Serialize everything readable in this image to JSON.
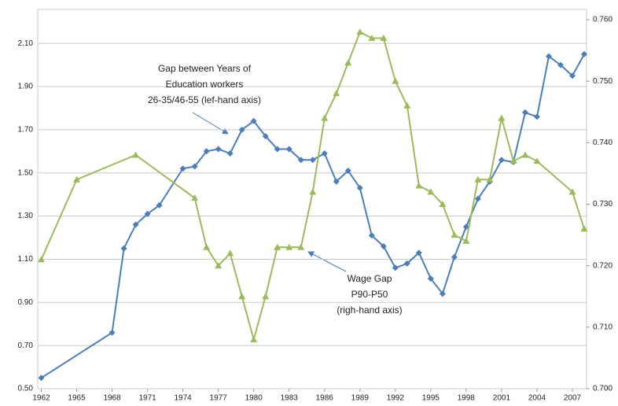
{
  "chart_data": {
    "type": "line",
    "annotations": [
      [
        "Gap between Years of",
        "Education workers",
        "26-35/46-55 (lef-hand axis)"
      ],
      [
        "Wage Gap",
        "P90-P50",
        "(righ-hand axis)"
      ]
    ],
    "series": [
      {
        "color": "#4a7ebb",
        "marker": "diamond",
        "x": [
          1962,
          1968,
          1969,
          1970,
          1971,
          1972,
          1974,
          1975,
          1976,
          1977,
          1978,
          1979,
          1980,
          1981,
          1982,
          1983,
          1984,
          1985,
          1986,
          1987,
          1988,
          1989,
          1990,
          1991,
          1992,
          1993,
          1994,
          1995,
          1996,
          1997,
          1998,
          1999,
          2000,
          2001,
          2002,
          2003,
          2004,
          2005,
          2006,
          2007,
          2008
        ],
        "values": [
          0.55,
          0.76,
          1.15,
          1.26,
          1.31,
          1.35,
          1.52,
          1.53,
          1.6,
          1.61,
          1.59,
          1.7,
          1.74,
          1.67,
          1.61,
          1.61,
          1.56,
          1.56,
          1.59,
          1.46,
          1.51,
          1.43,
          1.21,
          1.16,
          1.06,
          1.08,
          1.13,
          1.01,
          0.94,
          1.11,
          1.25,
          1.38,
          1.46,
          1.56,
          1.55,
          1.78,
          1.76,
          2.04,
          2.0,
          1.95,
          2.05
        ]
      },
      {
        "color": "#9bbb59",
        "marker": "triangle",
        "axis": "y2",
        "x": [
          1962,
          1965,
          1970,
          1975,
          1976,
          1977,
          1978,
          1979,
          1980,
          1981,
          1982,
          1983,
          1984,
          1985,
          1986,
          1987,
          1988,
          1989,
          1990,
          1991,
          1992,
          1993,
          1994,
          1995,
          1996,
          1997,
          1998,
          1999,
          2000,
          2001,
          2002,
          2003,
          2004,
          2007,
          2008
        ],
        "values": [
          0.721,
          0.734,
          0.738,
          0.731,
          0.723,
          0.72,
          0.722,
          0.715,
          0.708,
          0.715,
          0.723,
          0.723,
          0.723,
          0.732,
          0.744,
          0.748,
          0.753,
          0.758,
          0.757,
          0.757,
          0.75,
          0.746,
          0.733,
          0.732,
          0.73,
          0.725,
          0.724,
          0.734,
          0.734,
          0.744,
          0.737,
          0.738,
          0.737,
          0.732,
          0.726
        ]
      }
    ],
    "xlim": [
      1961.7,
      2008.2
    ],
    "xticks": [
      1962,
      1965,
      1968,
      1971,
      1974,
      1977,
      1980,
      1983,
      1986,
      1989,
      1992,
      1995,
      1998,
      2001,
      2004,
      2007
    ],
    "ylim": [
      0.5,
      2.21
    ],
    "yticks": [
      {
        "value": 0.5,
        "label": "0.50"
      },
      {
        "value": 0.7,
        "label": "0.70"
      },
      {
        "value": 0.9,
        "label": "0.90"
      },
      {
        "value": 1.1,
        "label": "1.10"
      },
      {
        "value": 1.3,
        "label": "1.30"
      },
      {
        "value": 1.5,
        "label": "1.50"
      },
      {
        "value": 1.7,
        "label": "1.70"
      },
      {
        "value": 1.9,
        "label": "1.90"
      },
      {
        "value": 2.1,
        "label": "2.10"
      }
    ],
    "y2lim": [
      0.7,
      0.76
    ],
    "y2ticks": [
      {
        "value": 0.7,
        "label": "0.700"
      },
      {
        "value": 0.71,
        "label": "0.710"
      },
      {
        "value": 0.72,
        "label": "0.720"
      },
      {
        "value": 0.73,
        "label": "0.730"
      },
      {
        "value": 0.74,
        "label": "0.740"
      },
      {
        "value": 0.75,
        "label": "0.750"
      },
      {
        "value": 0.76,
        "label": "0.760"
      }
    ],
    "grid": true
  }
}
